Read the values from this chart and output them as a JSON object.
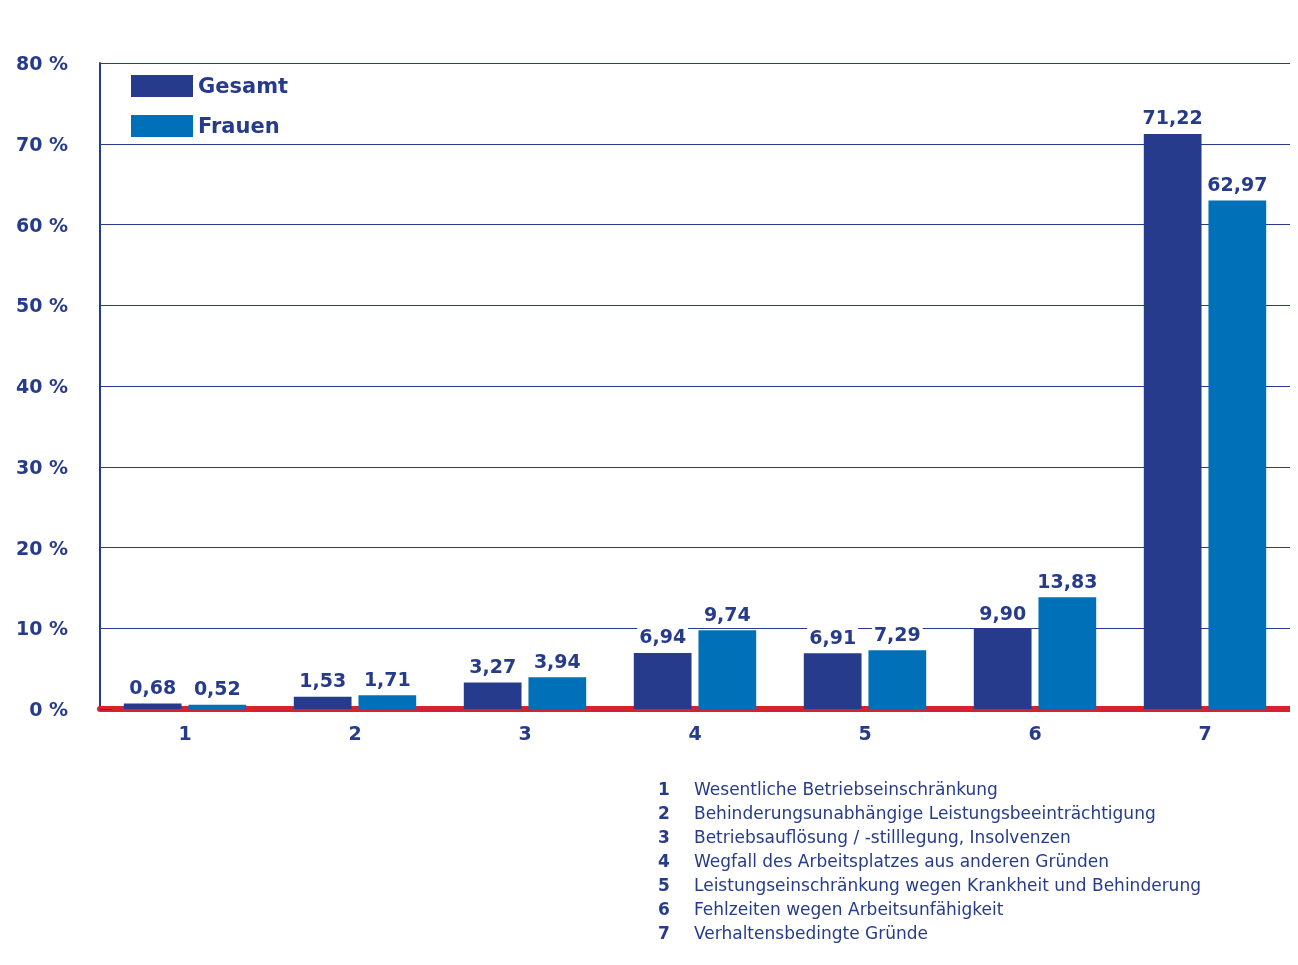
{
  "chart_data": {
    "type": "bar",
    "categories": [
      "1",
      "2",
      "3",
      "4",
      "5",
      "6",
      "7"
    ],
    "series": [
      {
        "name": "Gesamt",
        "color": "#263b8c",
        "values": [
          0.68,
          1.53,
          3.27,
          6.94,
          6.91,
          9.9,
          71.22
        ],
        "value_labels": [
          "0,68",
          "1,53",
          "3,27",
          "6,94",
          "6,91",
          "9,90",
          "71,22"
        ]
      },
      {
        "name": "Frauen",
        "color": "#0071b9",
        "values": [
          0.52,
          1.71,
          3.94,
          9.74,
          7.29,
          13.83,
          62.97
        ],
        "value_labels": [
          "0,52",
          "1,71",
          "3,94",
          "9,74",
          "7,29",
          "13,83",
          "62,97"
        ]
      }
    ],
    "ylim": [
      0,
      80
    ],
    "yticks": [
      {
        "value": 0,
        "label": "0 %"
      },
      {
        "value": 10,
        "label": "10 %"
      },
      {
        "value": 20,
        "label": "20 %"
      },
      {
        "value": 30,
        "label": "30 %"
      },
      {
        "value": 40,
        "label": "40 %"
      },
      {
        "value": 50,
        "label": "50 %"
      },
      {
        "value": 60,
        "label": "60 %"
      },
      {
        "value": 70,
        "label": "70 %"
      },
      {
        "value": 80,
        "label": "80 %"
      }
    ],
    "grid": "y",
    "legend": "top left",
    "annotations": [
      "1 Wesentliche Betriebseinschränkung",
      "2 Behinderungsunabhängige Leistungsbeeinträchtigung",
      "3 Betriebsauflösung / -stilllegung, Insolvenzen",
      "4 Wegfall des Arbeitsplatzes aus anderen Gründen",
      "5 Leistungseinschränkung wegen Krankheit und Behinderung",
      "6 Fehlzeiten wegen Arbeitsunfähigkeit",
      "7 Verhaltensbedingte Gründe"
    ]
  }
}
